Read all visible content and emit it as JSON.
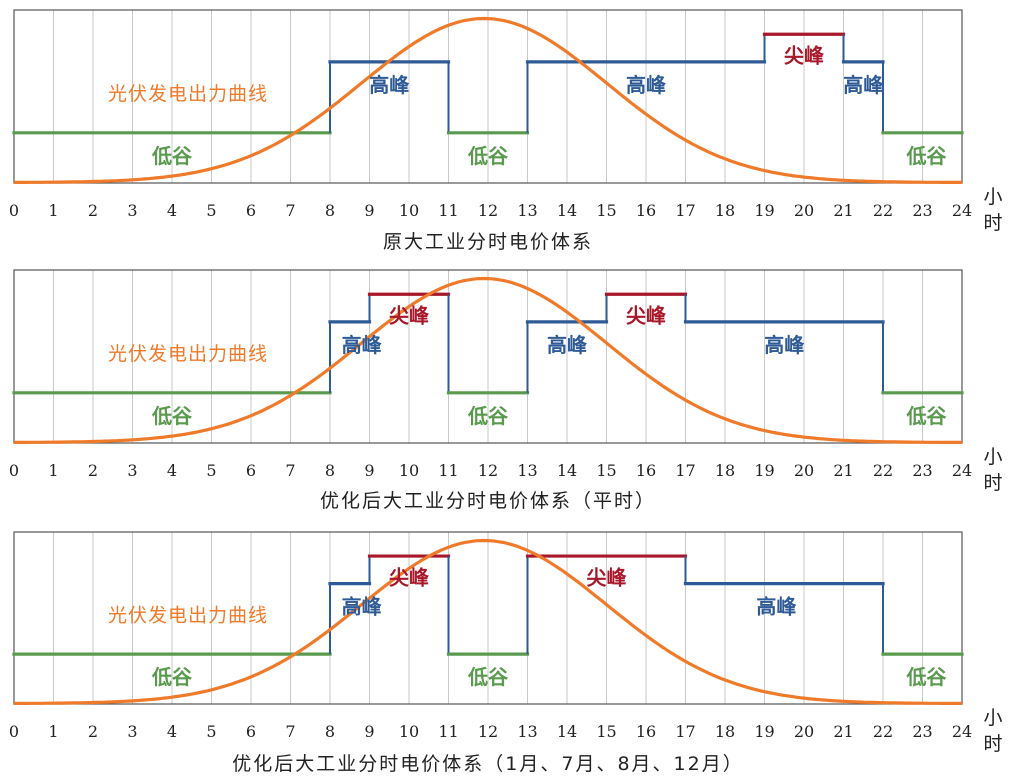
{
  "colors": {
    "valley": "#5a9a4e",
    "peak": "#2e5a96",
    "sharp": "#a8182a",
    "curve": "#ef7a2a",
    "grid": "#c9c9c9",
    "frame": "#555555"
  },
  "unit_label": [
    "小",
    "时"
  ],
  "chart_data": [
    {
      "type": "line",
      "caption": "原大工业分时电价体系",
      "curve_label": "光伏发电出力曲线",
      "x_ticks": [
        "0",
        "1",
        "2",
        "3",
        "4",
        "5",
        "6",
        "7",
        "8",
        "9",
        "10",
        "11",
        "12",
        "13",
        "14",
        "15",
        "16",
        "17",
        "18",
        "19",
        "20",
        "21",
        "22",
        "23",
        "24"
      ],
      "xlim": [
        0,
        24
      ],
      "segments": [
        {
          "start": 0,
          "end": 8,
          "level": "valley"
        },
        {
          "start": 8,
          "end": 11,
          "level": "peak"
        },
        {
          "start": 11,
          "end": 13,
          "level": "valley"
        },
        {
          "start": 13,
          "end": 19,
          "level": "peak"
        },
        {
          "start": 19,
          "end": 21,
          "level": "sharp"
        },
        {
          "start": 21,
          "end": 22,
          "level": "peak"
        },
        {
          "start": 22,
          "end": 24,
          "level": "valley"
        }
      ],
      "labels": [
        {
          "text": "低谷",
          "level": "valley",
          "hour": 4
        },
        {
          "text": "高峰",
          "level": "peak",
          "hour": 9.5
        },
        {
          "text": "低谷",
          "level": "valley",
          "hour": 12
        },
        {
          "text": "高峰",
          "level": "peak",
          "hour": 16
        },
        {
          "text": "尖峰",
          "level": "sharp",
          "hour": 20
        },
        {
          "text": "高峰",
          "level": "peak",
          "hour": 21.5
        },
        {
          "text": "低谷",
          "level": "valley",
          "hour": 23.1
        }
      ]
    },
    {
      "type": "line",
      "caption": "优化后大工业分时电价体系（平时）",
      "curve_label": "光伏发电出力曲线",
      "x_ticks": [
        "0",
        "1",
        "2",
        "3",
        "4",
        "5",
        "6",
        "7",
        "8",
        "9",
        "10",
        "11",
        "12",
        "13",
        "14",
        "15",
        "16",
        "17",
        "18",
        "19",
        "20",
        "21",
        "22",
        "23",
        "24"
      ],
      "xlim": [
        0,
        24
      ],
      "segments": [
        {
          "start": 0,
          "end": 8,
          "level": "valley"
        },
        {
          "start": 8,
          "end": 9,
          "level": "peak"
        },
        {
          "start": 9,
          "end": 11,
          "level": "sharp"
        },
        {
          "start": 11,
          "end": 13,
          "level": "valley"
        },
        {
          "start": 13,
          "end": 15,
          "level": "peak"
        },
        {
          "start": 15,
          "end": 17,
          "level": "sharp"
        },
        {
          "start": 17,
          "end": 22,
          "level": "peak"
        },
        {
          "start": 22,
          "end": 24,
          "level": "valley"
        }
      ],
      "labels": [
        {
          "text": "低谷",
          "level": "valley",
          "hour": 4
        },
        {
          "text": "高峰",
          "level": "peak",
          "hour": 8.8
        },
        {
          "text": "尖峰",
          "level": "sharp",
          "hour": 10
        },
        {
          "text": "低谷",
          "level": "valley",
          "hour": 12
        },
        {
          "text": "高峰",
          "level": "peak",
          "hour": 14
        },
        {
          "text": "尖峰",
          "level": "sharp",
          "hour": 16
        },
        {
          "text": "高峰",
          "level": "peak",
          "hour": 19.5
        },
        {
          "text": "低谷",
          "level": "valley",
          "hour": 23.1
        }
      ]
    },
    {
      "type": "line",
      "caption": "优化后大工业分时电价体系（1月、7月、8月、12月）",
      "curve_label": "光伏发电出力曲线",
      "x_ticks": [
        "0",
        "1",
        "2",
        "3",
        "4",
        "5",
        "6",
        "7",
        "8",
        "9",
        "10",
        "11",
        "12",
        "13",
        "14",
        "15",
        "16",
        "17",
        "18",
        "19",
        "20",
        "21",
        "22",
        "23",
        "24"
      ],
      "xlim": [
        0,
        24
      ],
      "segments": [
        {
          "start": 0,
          "end": 8,
          "level": "valley"
        },
        {
          "start": 8,
          "end": 9,
          "level": "peak"
        },
        {
          "start": 9,
          "end": 11,
          "level": "sharp"
        },
        {
          "start": 11,
          "end": 13,
          "level": "valley"
        },
        {
          "start": 13,
          "end": 17,
          "level": "sharp"
        },
        {
          "start": 17,
          "end": 22,
          "level": "peak"
        },
        {
          "start": 22,
          "end": 24,
          "level": "valley"
        }
      ],
      "labels": [
        {
          "text": "低谷",
          "level": "valley",
          "hour": 4
        },
        {
          "text": "高峰",
          "level": "peak",
          "hour": 8.8
        },
        {
          "text": "尖峰",
          "level": "sharp",
          "hour": 10
        },
        {
          "text": "低谷",
          "level": "valley",
          "hour": 12
        },
        {
          "text": "尖峰",
          "level": "sharp",
          "hour": 15
        },
        {
          "text": "高峰",
          "level": "peak",
          "hour": 19.3
        },
        {
          "text": "低谷",
          "level": "valley",
          "hour": 23.1
        }
      ]
    }
  ]
}
